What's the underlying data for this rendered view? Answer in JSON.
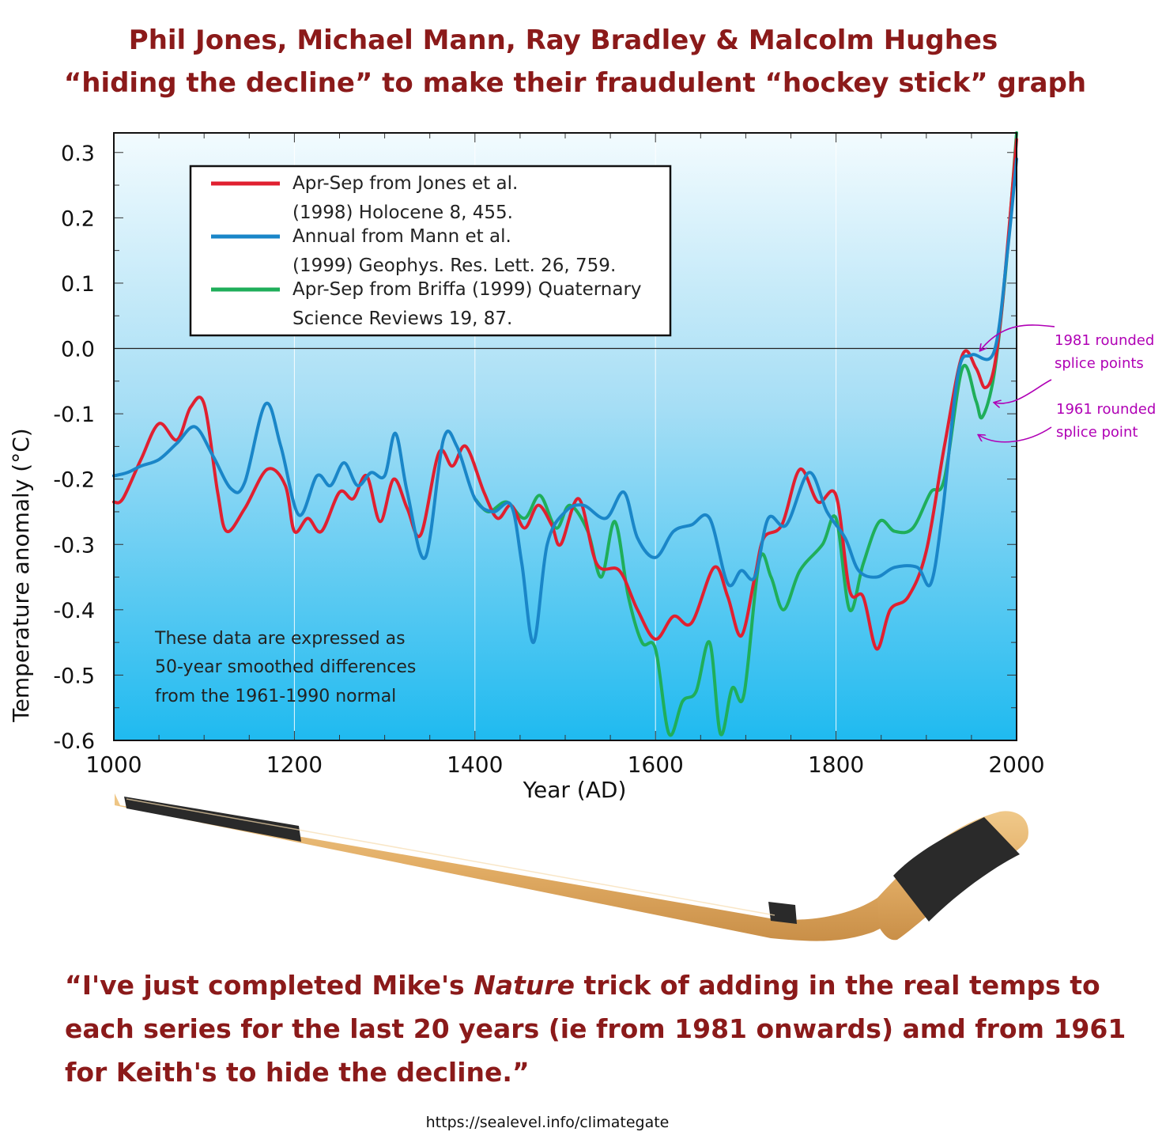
{
  "headline": {
    "line1": "Phil Jones, Michael Mann, Ray Bradley & Malcolm Hughes",
    "line2": "“hiding the decline” to make their fraudulent “hockey stick” graph"
  },
  "colors": {
    "headline": "#8b1a1a",
    "annotation": "#b000b5"
  },
  "chart_data": {
    "type": "line",
    "xlabel": "Year (AD)",
    "ylabel": "Temperature anomaly (°C)",
    "xlim": [
      1000,
      2000
    ],
    "ylim": [
      -0.6,
      0.33
    ],
    "x_ticks": [
      1000,
      1200,
      1400,
      1600,
      1800,
      2000
    ],
    "y_ticks": [
      0.3,
      0.2,
      0.1,
      0.0,
      -0.1,
      -0.2,
      -0.3,
      -0.4,
      -0.5,
      -0.6
    ],
    "y_tick_labels": [
      "0.3",
      "0.2",
      "0.1",
      "0.0",
      "-0.1",
      "-0.2",
      "-0.3",
      "-0.4",
      "-0.5",
      "-0.6"
    ],
    "grid": "vertical",
    "legend_position": "top-left",
    "series": [
      {
        "legend_line1": "Apr-Sep from Jones et al.",
        "legend_line2": "(1998) Holocene 8, 455.",
        "color": "#e02030",
        "points": [
          [
            1000,
            -0.235
          ],
          [
            1010,
            -0.23
          ],
          [
            1030,
            -0.17
          ],
          [
            1050,
            -0.115
          ],
          [
            1070,
            -0.14
          ],
          [
            1085,
            -0.09
          ],
          [
            1100,
            -0.085
          ],
          [
            1115,
            -0.22
          ],
          [
            1125,
            -0.28
          ],
          [
            1145,
            -0.245
          ],
          [
            1170,
            -0.185
          ],
          [
            1190,
            -0.21
          ],
          [
            1200,
            -0.28
          ],
          [
            1215,
            -0.26
          ],
          [
            1230,
            -0.28
          ],
          [
            1250,
            -0.22
          ],
          [
            1265,
            -0.23
          ],
          [
            1280,
            -0.195
          ],
          [
            1295,
            -0.265
          ],
          [
            1310,
            -0.2
          ],
          [
            1325,
            -0.245
          ],
          [
            1340,
            -0.285
          ],
          [
            1360,
            -0.16
          ],
          [
            1375,
            -0.18
          ],
          [
            1390,
            -0.15
          ],
          [
            1410,
            -0.22
          ],
          [
            1425,
            -0.26
          ],
          [
            1440,
            -0.24
          ],
          [
            1455,
            -0.275
          ],
          [
            1470,
            -0.24
          ],
          [
            1485,
            -0.27
          ],
          [
            1495,
            -0.3
          ],
          [
            1515,
            -0.23
          ],
          [
            1535,
            -0.33
          ],
          [
            1560,
            -0.34
          ],
          [
            1580,
            -0.4
          ],
          [
            1600,
            -0.445
          ],
          [
            1620,
            -0.41
          ],
          [
            1640,
            -0.42
          ],
          [
            1665,
            -0.335
          ],
          [
            1680,
            -0.38
          ],
          [
            1695,
            -0.44
          ],
          [
            1710,
            -0.35
          ],
          [
            1720,
            -0.29
          ],
          [
            1740,
            -0.27
          ],
          [
            1760,
            -0.185
          ],
          [
            1780,
            -0.235
          ],
          [
            1800,
            -0.225
          ],
          [
            1815,
            -0.37
          ],
          [
            1830,
            -0.38
          ],
          [
            1845,
            -0.46
          ],
          [
            1860,
            -0.4
          ],
          [
            1880,
            -0.38
          ],
          [
            1900,
            -0.31
          ],
          [
            1920,
            -0.15
          ],
          [
            1940,
            -0.01
          ],
          [
            1955,
            -0.03
          ],
          [
            1965,
            -0.06
          ],
          [
            1975,
            -0.03
          ],
          [
            1985,
            0.08
          ],
          [
            2000,
            0.32
          ]
        ]
      },
      {
        "legend_line1": "Annual from Mann et al.",
        "legend_line2": "(1999) Geophys. Res. Lett. 26, 759.",
        "color": "#1a86c8",
        "points": [
          [
            1000,
            -0.195
          ],
          [
            1015,
            -0.19
          ],
          [
            1030,
            -0.18
          ],
          [
            1050,
            -0.17
          ],
          [
            1070,
            -0.145
          ],
          [
            1090,
            -0.12
          ],
          [
            1110,
            -0.165
          ],
          [
            1130,
            -0.215
          ],
          [
            1145,
            -0.205
          ],
          [
            1168,
            -0.085
          ],
          [
            1185,
            -0.15
          ],
          [
            1205,
            -0.255
          ],
          [
            1225,
            -0.195
          ],
          [
            1240,
            -0.21
          ],
          [
            1255,
            -0.175
          ],
          [
            1270,
            -0.21
          ],
          [
            1285,
            -0.19
          ],
          [
            1300,
            -0.195
          ],
          [
            1312,
            -0.13
          ],
          [
            1325,
            -0.22
          ],
          [
            1345,
            -0.32
          ],
          [
            1365,
            -0.14
          ],
          [
            1380,
            -0.15
          ],
          [
            1400,
            -0.23
          ],
          [
            1420,
            -0.25
          ],
          [
            1440,
            -0.24
          ],
          [
            1452,
            -0.33
          ],
          [
            1465,
            -0.45
          ],
          [
            1480,
            -0.3
          ],
          [
            1500,
            -0.25
          ],
          [
            1520,
            -0.24
          ],
          [
            1545,
            -0.26
          ],
          [
            1565,
            -0.22
          ],
          [
            1580,
            -0.29
          ],
          [
            1600,
            -0.32
          ],
          [
            1620,
            -0.28
          ],
          [
            1640,
            -0.27
          ],
          [
            1660,
            -0.26
          ],
          [
            1680,
            -0.36
          ],
          [
            1695,
            -0.34
          ],
          [
            1710,
            -0.35
          ],
          [
            1725,
            -0.26
          ],
          [
            1745,
            -0.27
          ],
          [
            1770,
            -0.19
          ],
          [
            1790,
            -0.25
          ],
          [
            1810,
            -0.29
          ],
          [
            1825,
            -0.34
          ],
          [
            1845,
            -0.35
          ],
          [
            1865,
            -0.335
          ],
          [
            1890,
            -0.335
          ],
          [
            1905,
            -0.36
          ],
          [
            1918,
            -0.25
          ],
          [
            1935,
            -0.04
          ],
          [
            1950,
            -0.01
          ],
          [
            1975,
            -0.005
          ],
          [
            1990,
            0.15
          ],
          [
            2000,
            0.29
          ]
        ]
      },
      {
        "legend_line1": "Apr-Sep from Briffa (1999) Quaternary",
        "legend_line2": "Science Reviews 19, 87.",
        "color": "#1fae5a",
        "points": [
          [
            1400,
            -0.23
          ],
          [
            1415,
            -0.25
          ],
          [
            1435,
            -0.235
          ],
          [
            1455,
            -0.26
          ],
          [
            1472,
            -0.225
          ],
          [
            1490,
            -0.275
          ],
          [
            1505,
            -0.24
          ],
          [
            1525,
            -0.28
          ],
          [
            1540,
            -0.35
          ],
          [
            1555,
            -0.265
          ],
          [
            1570,
            -0.38
          ],
          [
            1585,
            -0.45
          ],
          [
            1600,
            -0.46
          ],
          [
            1615,
            -0.59
          ],
          [
            1630,
            -0.54
          ],
          [
            1645,
            -0.525
          ],
          [
            1660,
            -0.45
          ],
          [
            1672,
            -0.59
          ],
          [
            1685,
            -0.52
          ],
          [
            1698,
            -0.53
          ],
          [
            1715,
            -0.325
          ],
          [
            1728,
            -0.35
          ],
          [
            1742,
            -0.4
          ],
          [
            1760,
            -0.34
          ],
          [
            1785,
            -0.3
          ],
          [
            1800,
            -0.26
          ],
          [
            1815,
            -0.4
          ],
          [
            1830,
            -0.33
          ],
          [
            1848,
            -0.265
          ],
          [
            1865,
            -0.28
          ],
          [
            1885,
            -0.275
          ],
          [
            1905,
            -0.22
          ],
          [
            1920,
            -0.2
          ],
          [
            1940,
            -0.03
          ],
          [
            1955,
            -0.08
          ],
          [
            1962,
            -0.105
          ],
          [
            1975,
            -0.04
          ],
          [
            1988,
            0.12
          ],
          [
            2000,
            0.33
          ]
        ]
      }
    ],
    "note_lines": [
      "These data are expressed as",
      "50-year smoothed differences",
      "from the 1961-1990 normal"
    ],
    "annotations": [
      {
        "line1": "1981 rounded",
        "line2": "splice points"
      },
      {
        "line1": "1961 rounded",
        "line2": "splice point"
      }
    ]
  },
  "quote": {
    "part1": "“I've just completed Mike's ",
    "italic": "Nature",
    "part2": " trick of adding in the real temps to each series for the last 20 years (ie from 1981 onwards) amd from 1961 for Keith's to hide the decline.”"
  },
  "source_url": "https://sealevel.info/climategate"
}
